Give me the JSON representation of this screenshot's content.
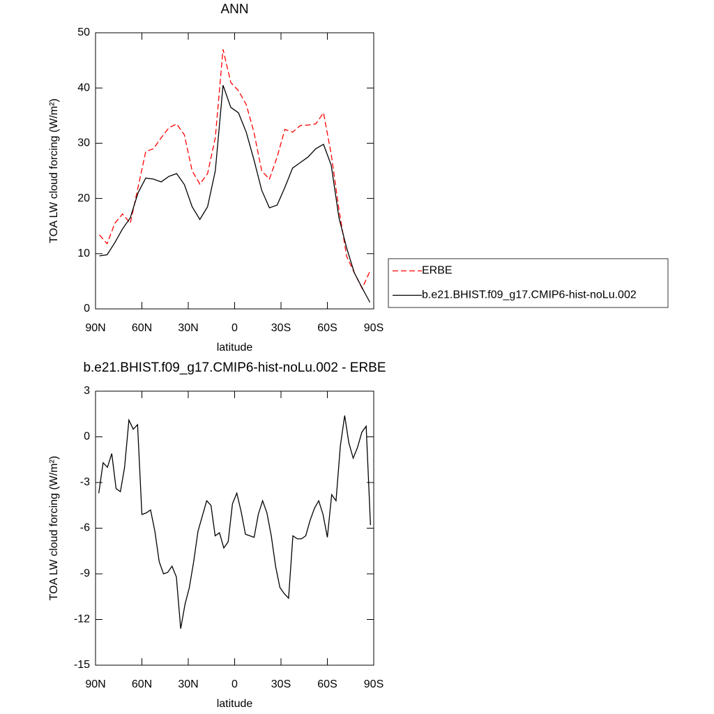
{
  "chart_data": [
    {
      "type": "line",
      "title": "ANN",
      "xlabel": "latitude",
      "ylabel": "TOA LW cloud forcing (W/m²)",
      "x": [
        87.5,
        82.5,
        77.5,
        72.5,
        67.5,
        62.5,
        57.5,
        52.5,
        47.5,
        42.5,
        37.5,
        32.5,
        27.5,
        22.5,
        17.5,
        12.5,
        7.5,
        2.5,
        -2.5,
        -7.5,
        -12.5,
        -17.5,
        -22.5,
        -27.5,
        -32.5,
        -37.5,
        -42.5,
        -47.5,
        -52.5,
        -57.5,
        -62.5,
        -67.5,
        -72.5,
        -77.5,
        -82.5,
        -87.5
      ],
      "series": [
        {
          "name": "ERBE",
          "color": "#ff0000",
          "dash": true,
          "values": [
            13.4,
            11.8,
            15.5,
            17.2,
            15.5,
            22,
            28.5,
            29,
            31,
            32.8,
            33.5,
            31.5,
            25,
            22.6,
            24.5,
            31,
            47,
            41,
            39.5,
            37,
            32,
            25,
            23.5,
            27.5,
            32.5,
            32,
            33.2,
            33.3,
            33.5,
            35.5,
            28,
            18,
            9.5,
            6.5,
            3.7,
            6.8
          ]
        },
        {
          "name": "b.e21.BHIST.f09_g17.CMIP6-hist-noLu.002",
          "color": "#000000",
          "dash": false,
          "values": [
            9.6,
            9.8,
            12,
            14.5,
            16.5,
            21,
            23.7,
            23.5,
            23,
            24,
            24.5,
            22.5,
            18.5,
            16.2,
            18.5,
            25,
            40.5,
            36.5,
            35.5,
            32,
            27,
            21.5,
            18.3,
            18.8,
            22,
            25.5,
            26.5,
            27.5,
            29,
            29.8,
            26,
            16.5,
            11,
            6.5,
            3.8,
            1.2
          ]
        }
      ],
      "xlim": [
        90,
        -90
      ],
      "ylim": [
        0,
        50
      ],
      "xticks": [
        {
          "value": 90,
          "label": "90N"
        },
        {
          "value": 60,
          "label": "60N"
        },
        {
          "value": 30,
          "label": "30N"
        },
        0,
        {
          "value": -30,
          "label": "30S"
        },
        {
          "value": -60,
          "label": "60S"
        },
        {
          "value": -90,
          "label": "90S"
        }
      ],
      "yticks": [
        0,
        10,
        20,
        30,
        40,
        50
      ],
      "legend": "right"
    },
    {
      "type": "line",
      "title": "b.e21.BHIST.f09_g17.CMIP6-hist-noLu.002 - ERBE",
      "xlabel": "latitude",
      "ylabel": "TOA LW cloud forcing (W/m²)",
      "x": [
        87.9,
        85.1,
        82.3,
        79.5,
        76.7,
        73.9,
        71.2,
        68.4,
        65.6,
        62.8,
        60.0,
        57.2,
        54.4,
        51.6,
        48.8,
        46.0,
        43.3,
        40.5,
        37.7,
        34.9,
        32.1,
        29.3,
        26.5,
        23.7,
        20.9,
        18.1,
        15.3,
        12.6,
        9.8,
        7.0,
        4.2,
        1.4,
        -1.4,
        -4.2,
        -7.0,
        -9.8,
        -12.6,
        -15.3,
        -18.1,
        -20.9,
        -23.7,
        -26.5,
        -29.3,
        -32.1,
        -34.9,
        -37.7,
        -40.5,
        -43.3,
        -46.0,
        -48.8,
        -51.6,
        -54.4,
        -57.2,
        -60.0,
        -62.8,
        -65.6,
        -68.4,
        -71.2,
        -73.9,
        -76.7,
        -79.5,
        -82.3,
        -85.1,
        -87.9
      ],
      "series": [
        {
          "color": "#000000",
          "dash": false,
          "values": [
            -3.7,
            -1.7,
            -2.0,
            -1.1,
            -3.4,
            -3.6,
            -2.0,
            1.1,
            0.5,
            0.8,
            -5.1,
            -5.0,
            -4.8,
            -6.2,
            -8.2,
            -9.0,
            -8.9,
            -8.5,
            -9.2,
            -12.6,
            -11.0,
            -9.9,
            -8.2,
            -6.2,
            -5.2,
            -4.2,
            -4.5,
            -6.5,
            -6.3,
            -7.3,
            -6.9,
            -4.4,
            -3.7,
            -4.9,
            -6.4,
            -6.5,
            -6.6,
            -5.1,
            -4.2,
            -5.0,
            -6.5,
            -8.5,
            -9.9,
            -10.3,
            -10.6,
            -6.5,
            -6.7,
            -6.7,
            -6.5,
            -5.5,
            -4.7,
            -4.2,
            -5.1,
            -6.6,
            -3.8,
            -4.2,
            -0.6,
            1.4,
            -0.4,
            -1.4,
            -0.7,
            0.3,
            0.7,
            -5.8
          ]
        }
      ],
      "xlim": [
        90,
        -90
      ],
      "ylim": [
        -15,
        3
      ],
      "xticks": [
        {
          "value": 90,
          "label": "90N"
        },
        {
          "value": 60,
          "label": "60N"
        },
        {
          "value": 30,
          "label": "30N"
        },
        0,
        {
          "value": -30,
          "label": "30S"
        },
        {
          "value": -60,
          "label": "60S"
        },
        {
          "value": -90,
          "label": "90S"
        }
      ],
      "yticks": [
        -15,
        -12,
        -9,
        -6,
        -3,
        0,
        3
      ]
    }
  ]
}
